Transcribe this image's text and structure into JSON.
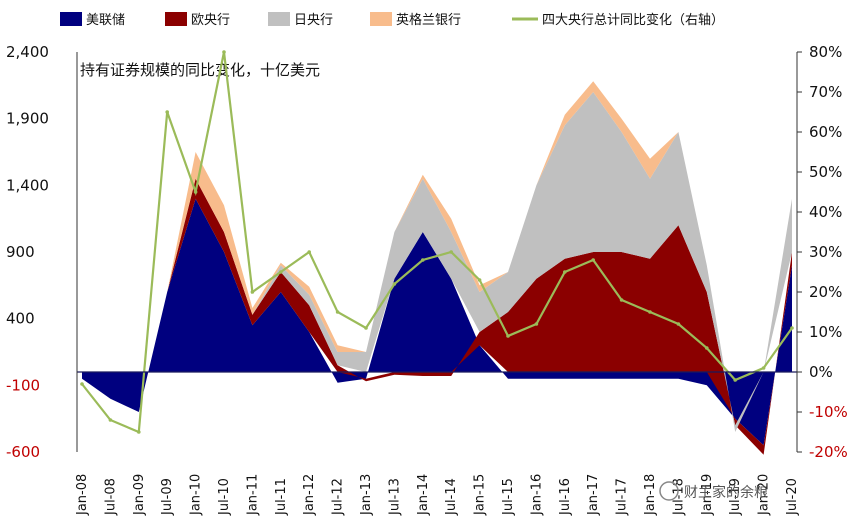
{
  "chart_data": {
    "type": "area",
    "annotation": "持有证券规模的同比变化，十亿美元",
    "legend_position": "top",
    "x": [
      "Jan-08",
      "Jul-08",
      "Jan-09",
      "Jul-09",
      "Jan-10",
      "Jul-10",
      "Jan-11",
      "Jul-11",
      "Jan-12",
      "Jul-12",
      "Jan-13",
      "Jul-13",
      "Jan-14",
      "Jul-14",
      "Jan-15",
      "Jul-15",
      "Jan-16",
      "Jul-16",
      "Jan-17",
      "Jul-17",
      "Jan-18",
      "Jul-18",
      "Jan-19",
      "Jul-19",
      "Jan-20",
      "Jul-20"
    ],
    "y_left": {
      "ticks": [
        "2,400",
        "1,900",
        "1,400",
        "900",
        "400",
        "-100",
        "-600"
      ],
      "tick_values": [
        2400,
        1900,
        1400,
        900,
        400,
        -100,
        -600
      ],
      "range": [
        -600,
        2400
      ]
    },
    "y_right": {
      "ticks": [
        "80%",
        "70%",
        "60%",
        "50%",
        "40%",
        "30%",
        "20%",
        "10%",
        "0%",
        "-10%",
        "-20%"
      ],
      "tick_values": [
        80,
        70,
        60,
        50,
        40,
        30,
        20,
        10,
        0,
        -10,
        -20
      ],
      "range": [
        -20,
        80
      ]
    },
    "series": [
      {
        "name": "美联储",
        "color": "#00007f",
        "axis": "left",
        "stack": true,
        "values": [
          -50,
          -200,
          -300,
          600,
          1300,
          900,
          350,
          600,
          300,
          -80,
          -50,
          700,
          1050,
          700,
          200,
          -50,
          -50,
          -50,
          -50,
          -50,
          -50,
          -50,
          -100,
          -350,
          -550,
          800
        ]
      },
      {
        "name": "欧央行",
        "color": "#8b0000",
        "axis": "left",
        "stack": true,
        "values": [
          0,
          0,
          0,
          0,
          150,
          150,
          80,
          150,
          200,
          50,
          -20,
          -20,
          -30,
          -30,
          100,
          450,
          700,
          850,
          900,
          900,
          850,
          1100,
          600,
          -50,
          -70,
          100
        ]
      },
      {
        "name": "日央行",
        "color": "#c0c0c0",
        "axis": "left",
        "stack": true,
        "values": [
          0,
          0,
          0,
          0,
          0,
          0,
          0,
          50,
          80,
          100,
          150,
          350,
          400,
          350,
          300,
          300,
          700,
          1000,
          1200,
          900,
          600,
          700,
          200,
          -50,
          0,
          400
        ]
      },
      {
        "name": "英格兰银行",
        "color": "#f8bc8c",
        "axis": "left",
        "stack": true,
        "values": [
          0,
          0,
          0,
          0,
          200,
          200,
          50,
          20,
          60,
          50,
          0,
          0,
          30,
          100,
          50,
          0,
          0,
          80,
          80,
          100,
          150,
          0,
          0,
          0,
          0,
          0
        ]
      },
      {
        "name": "四大央行总计同比变化（右轴）",
        "color": "#9bbb59",
        "axis": "right",
        "type": "line",
        "values": [
          -3,
          -12,
          -15,
          65,
          45,
          80,
          20,
          25,
          30,
          15,
          11,
          22,
          28,
          30,
          23,
          9,
          12,
          25,
          28,
          18,
          15,
          12,
          6,
          -2,
          1,
          11
        ]
      }
    ]
  },
  "watermark": "财主家的余粮"
}
